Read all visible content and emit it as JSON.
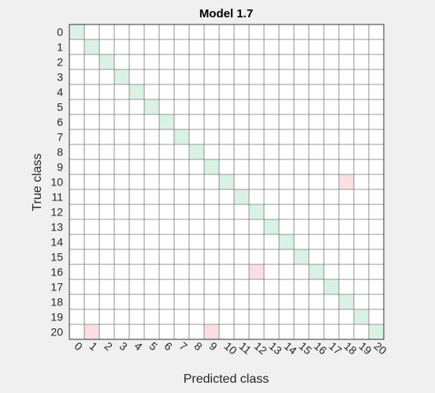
{
  "chart_data": {
    "type": "heatmap",
    "title": "Model 1.7",
    "xlabel": "Predicted class",
    "ylabel": "True class",
    "x_categories": [
      "0",
      "1",
      "2",
      "3",
      "4",
      "5",
      "6",
      "7",
      "8",
      "9",
      "10",
      "11",
      "12",
      "13",
      "14",
      "15",
      "16",
      "17",
      "18",
      "19",
      "20"
    ],
    "y_categories": [
      "0",
      "1",
      "2",
      "3",
      "4",
      "5",
      "6",
      "7",
      "8",
      "9",
      "10",
      "11",
      "12",
      "13",
      "14",
      "15",
      "16",
      "17",
      "18",
      "19",
      "20"
    ],
    "correct_color": "#daf2e4",
    "error_color": "#fbdfe1",
    "empty_color": "#ffffff",
    "grid": true,
    "cells": [
      {
        "true": "0",
        "pred": "0",
        "type": "correct"
      },
      {
        "true": "1",
        "pred": "1",
        "type": "correct"
      },
      {
        "true": "2",
        "pred": "2",
        "type": "correct"
      },
      {
        "true": "3",
        "pred": "3",
        "type": "correct"
      },
      {
        "true": "4",
        "pred": "4",
        "type": "correct"
      },
      {
        "true": "5",
        "pred": "5",
        "type": "correct"
      },
      {
        "true": "6",
        "pred": "6",
        "type": "correct"
      },
      {
        "true": "7",
        "pred": "7",
        "type": "correct"
      },
      {
        "true": "8",
        "pred": "8",
        "type": "correct"
      },
      {
        "true": "9",
        "pred": "9",
        "type": "correct"
      },
      {
        "true": "10",
        "pred": "10",
        "type": "correct"
      },
      {
        "true": "11",
        "pred": "11",
        "type": "correct"
      },
      {
        "true": "12",
        "pred": "12",
        "type": "correct"
      },
      {
        "true": "13",
        "pred": "13",
        "type": "correct"
      },
      {
        "true": "14",
        "pred": "14",
        "type": "correct"
      },
      {
        "true": "15",
        "pred": "15",
        "type": "correct"
      },
      {
        "true": "16",
        "pred": "16",
        "type": "correct"
      },
      {
        "true": "17",
        "pred": "17",
        "type": "correct"
      },
      {
        "true": "18",
        "pred": "18",
        "type": "correct"
      },
      {
        "true": "19",
        "pred": "19",
        "type": "correct"
      },
      {
        "true": "20",
        "pred": "20",
        "type": "correct"
      },
      {
        "true": "10",
        "pred": "18",
        "type": "error"
      },
      {
        "true": "16",
        "pred": "12",
        "type": "error"
      },
      {
        "true": "20",
        "pred": "1",
        "type": "error"
      },
      {
        "true": "20",
        "pred": "9",
        "type": "error"
      }
    ]
  }
}
